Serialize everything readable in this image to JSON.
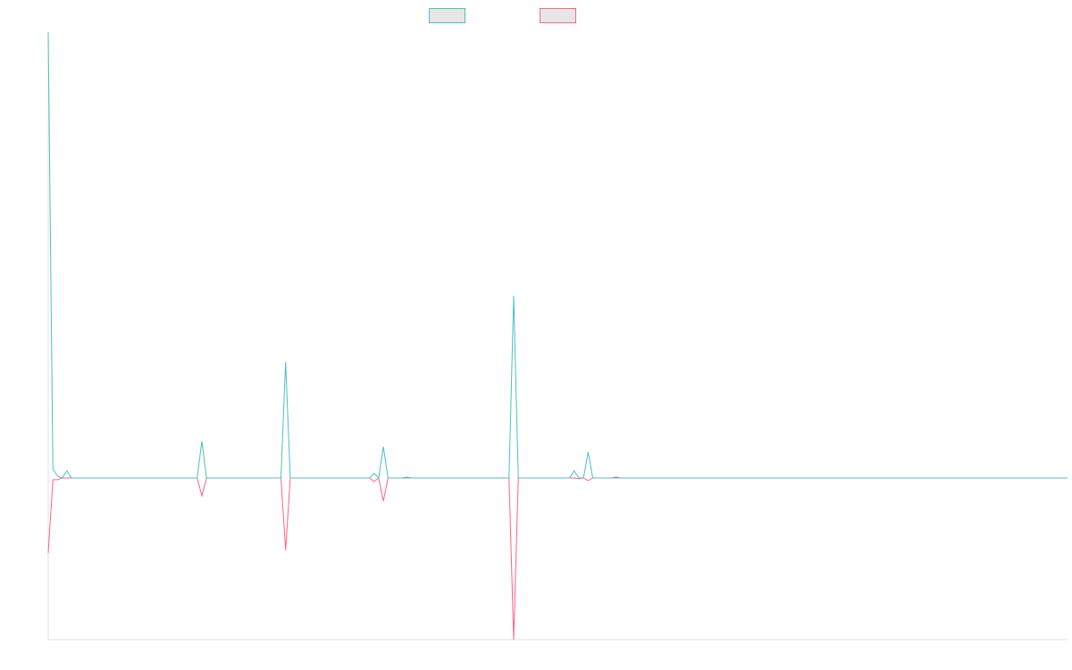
{
  "chart_data": {
    "type": "line",
    "xlim": [
      0,
      219
    ],
    "ylim": [
      -181,
      499
    ],
    "series": [
      {
        "color": "#4bc0c0",
        "values": [
          499,
          10,
          2,
          0,
          8,
          0,
          0,
          0,
          0,
          0,
          0,
          0,
          0,
          0,
          0,
          0,
          0,
          0,
          0,
          0,
          0,
          0,
          0,
          0,
          0,
          0,
          0,
          0,
          0,
          0,
          0,
          0,
          0,
          41,
          0,
          0,
          0,
          0,
          0,
          0,
          0,
          0,
          0,
          0,
          0,
          0,
          0,
          0,
          0,
          0,
          0,
          130,
          0,
          0,
          0,
          0,
          0,
          0,
          0,
          0,
          0,
          0,
          0,
          0,
          0,
          0,
          0,
          0,
          0,
          0,
          5,
          0,
          35,
          0,
          0,
          0,
          0,
          1,
          0,
          0,
          0,
          0,
          0,
          0,
          0,
          0,
          0,
          0,
          0,
          0,
          0,
          0,
          0,
          0,
          0,
          0,
          0,
          0,
          0,
          0,
          204,
          0,
          0,
          0,
          0,
          0,
          0,
          0,
          0,
          0,
          0,
          0,
          0,
          8,
          0,
          0,
          29,
          0,
          0,
          0,
          0,
          0,
          0,
          0,
          0,
          0,
          0,
          0,
          0,
          0,
          0,
          0,
          0,
          0,
          0,
          0,
          0,
          0,
          0,
          0,
          0,
          0,
          0,
          0,
          0,
          0,
          0,
          0,
          0,
          0,
          0,
          0,
          0,
          0,
          0,
          0,
          0,
          0,
          0,
          0,
          0,
          0,
          0,
          0,
          0,
          0,
          0,
          0,
          0,
          0,
          0,
          0,
          0,
          0,
          0,
          0,
          0,
          0,
          0,
          0,
          0,
          0,
          0,
          0,
          0,
          0,
          0,
          0,
          0,
          0,
          0,
          0,
          0,
          0,
          0,
          0,
          0,
          0,
          0,
          0,
          0,
          0,
          0,
          0,
          0,
          0,
          0,
          0,
          0,
          0,
          0,
          0,
          0,
          0,
          0,
          0,
          0,
          0,
          0,
          0
        ]
      },
      {
        "color": "#ff6384",
        "values": [
          -84,
          -2,
          -2,
          0,
          0,
          0,
          0,
          0,
          0,
          0,
          0,
          0,
          0,
          0,
          0,
          0,
          0,
          0,
          0,
          0,
          0,
          0,
          0,
          0,
          0,
          0,
          0,
          0,
          0,
          0,
          0,
          0,
          0,
          -20,
          0,
          0,
          0,
          0,
          0,
          0,
          0,
          0,
          0,
          0,
          0,
          0,
          0,
          0,
          0,
          0,
          0,
          -81,
          0,
          0,
          0,
          0,
          0,
          0,
          0,
          0,
          0,
          0,
          0,
          0,
          0,
          0,
          0,
          0,
          0,
          0,
          -4,
          0,
          -26,
          0,
          0,
          0,
          0,
          0,
          0,
          0,
          0,
          0,
          0,
          0,
          0,
          0,
          0,
          0,
          0,
          0,
          0,
          0,
          0,
          0,
          0,
          0,
          0,
          0,
          0,
          0,
          -181,
          0,
          0,
          0,
          0,
          0,
          0,
          0,
          0,
          0,
          0,
          0,
          0,
          0,
          -1,
          0,
          -3,
          0,
          0,
          0,
          0,
          0,
          1,
          0,
          0,
          0,
          0,
          0,
          0,
          0,
          0,
          0,
          0,
          0,
          0,
          0,
          0,
          0,
          0,
          0,
          0,
          0,
          0,
          0,
          0,
          0,
          0,
          0,
          0,
          0,
          0,
          0,
          0,
          0,
          0,
          0,
          0,
          0,
          0,
          0,
          0,
          0,
          0,
          0,
          0,
          0,
          0,
          0,
          0,
          0,
          0,
          0,
          0,
          0,
          0,
          0,
          0,
          0,
          0,
          0,
          0,
          0,
          0,
          0,
          0,
          0,
          0,
          0,
          0,
          0,
          0,
          0,
          0,
          0,
          0,
          0,
          0,
          0,
          0,
          0,
          0,
          0,
          0,
          0,
          0,
          0,
          0,
          0,
          0,
          0,
          0,
          0,
          0,
          0,
          0,
          0,
          0,
          0,
          0,
          0
        ]
      }
    ]
  }
}
